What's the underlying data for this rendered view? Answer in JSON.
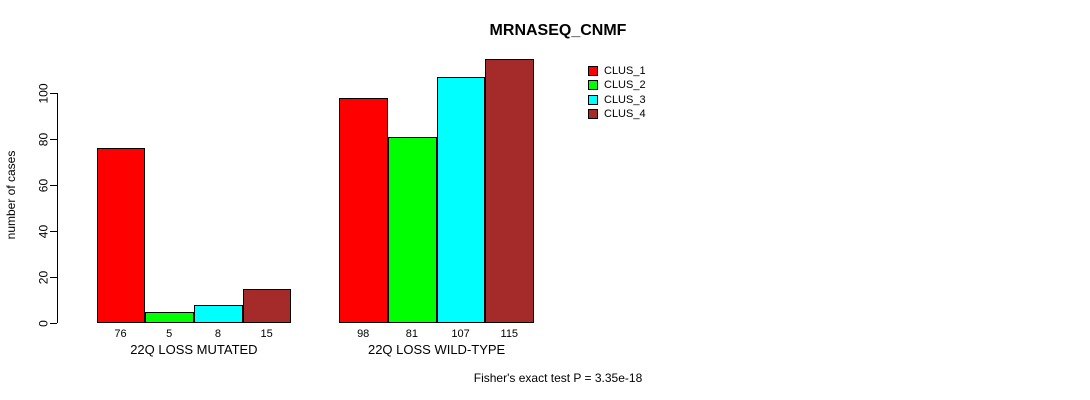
{
  "title": "MRNASEQ_CNMF",
  "footer": "Fisher's exact test P = 3.35e-18",
  "chart_data": {
    "type": "bar",
    "title": "MRNASEQ_CNMF",
    "xlabel": "",
    "ylabel": "number of cases",
    "ylim": [
      0,
      115
    ],
    "yticks": [
      0,
      20,
      40,
      60,
      80,
      100
    ],
    "grid": false,
    "legend_position": "top-right",
    "categories": [
      "22Q LOSS MUTATED",
      "22Q LOSS WILD-TYPE"
    ],
    "series": [
      {
        "name": "CLUS_1",
        "color": "#FF0000",
        "values": [
          76,
          98
        ]
      },
      {
        "name": "CLUS_2",
        "color": "#00FF00",
        "values": [
          5,
          81
        ]
      },
      {
        "name": "CLUS_3",
        "color": "#00FFFF",
        "values": [
          8,
          107
        ]
      },
      {
        "name": "CLUS_4",
        "color": "#A52A2A",
        "values": [
          15,
          115
        ]
      }
    ],
    "bar_value_labels": [
      [
        "76",
        "5",
        "8",
        "15"
      ],
      [
        "98",
        "81",
        "107",
        "115"
      ]
    ],
    "annotation": "Fisher's exact test P = 3.35e-18",
    "axis_color": "#000000",
    "bar_border_color": "#000000"
  }
}
